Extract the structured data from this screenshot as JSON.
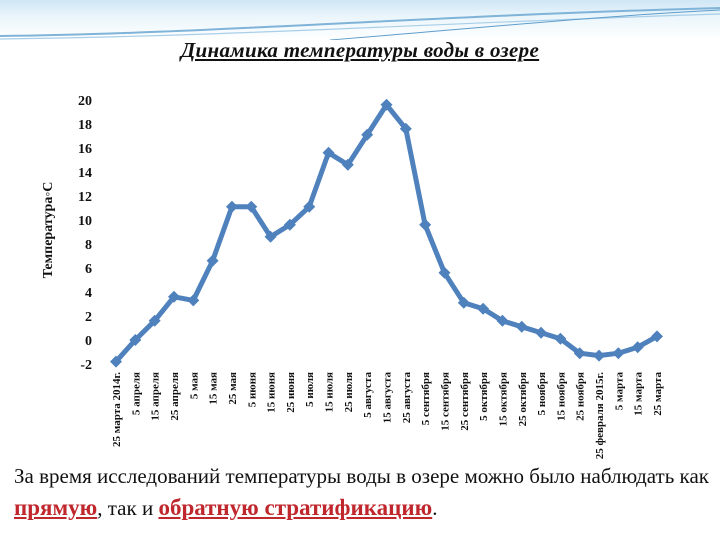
{
  "title": "Динамика температуры воды в озере",
  "caption": {
    "text1": "За время исследований температуры воды в озере можно было наблюдать как ",
    "word1": "прямую",
    "text2": ", так и ",
    "word2": "обратную стратификацию",
    "text3": "."
  },
  "colors": {
    "series": "#4f81bd",
    "accent": "#c0272d"
  },
  "chart_data": {
    "type": "line",
    "ylabel": "Температура◦С",
    "ylim": [
      -2,
      20
    ],
    "yticks": [
      -2,
      0,
      2,
      4,
      6,
      8,
      10,
      12,
      14,
      16,
      18,
      20
    ],
    "grid": false,
    "categories": [
      "25 марта 2014г.",
      "5 апреля",
      "15 апреля",
      "25 апреля",
      "5 мая",
      "15 мая",
      "25 мая",
      "5 июня",
      "15 июня",
      "25 июня",
      "5 июля",
      "15 июля",
      "25 июля",
      "5 августа",
      "15 августа",
      "25 августа",
      "5 сентября",
      "15 сентября",
      "25 сентября",
      "5 октября",
      "15 октября",
      "25 октября",
      "5 ноября",
      "15 ноября",
      "25 ноября",
      "25 февраля 2015г.",
      "5 марта",
      "15 марта",
      "25 марта"
    ],
    "series": [
      {
        "values": [
          -1.8,
          0.0,
          1.6,
          3.6,
          3.3,
          6.6,
          11.1,
          11.1,
          8.6,
          9.6,
          11.1,
          15.6,
          14.6,
          17.1,
          19.6,
          17.6,
          9.6,
          5.6,
          3.1,
          2.6,
          1.6,
          1.1,
          0.6,
          0.1,
          -1.1,
          -1.3,
          -1.1,
          -0.6,
          0.3
        ]
      }
    ]
  }
}
